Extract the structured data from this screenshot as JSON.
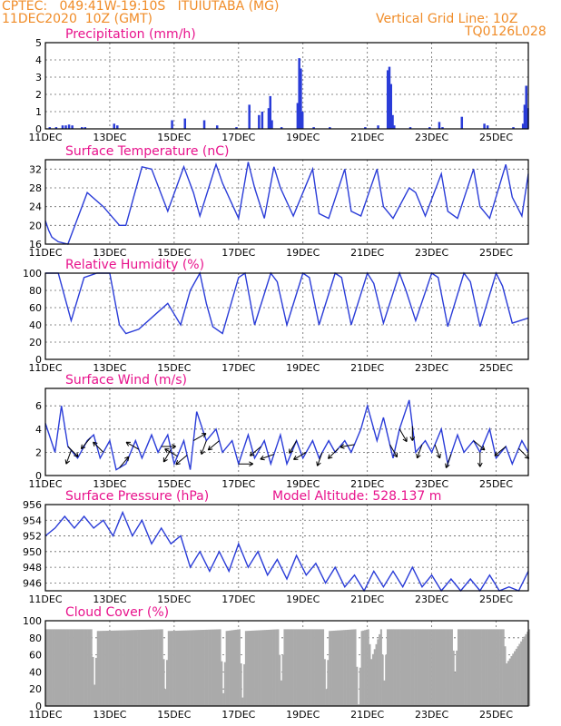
{
  "header": {
    "line1_left": "CPTEC:   049:41W-19:10S   ITUIUTABA (MG)",
    "line2_left": "11DEC2020  10Z (GMT)",
    "line2_right": "Vertical Grid Line: 10Z",
    "line3_right": "TQ0126L028"
  },
  "x_ticks": [
    "11DEC",
    "13DEC",
    "15DEC",
    "17DEC",
    "19DEC",
    "21DEC",
    "23DEC",
    "25DEC"
  ],
  "colors": {
    "line": "#2a3cd8",
    "bars": "#2a3cd8",
    "cloud": "#aaaaaa",
    "title": "#e8128c",
    "header": "#f08c28"
  },
  "chart_data": [
    {
      "id": "precip",
      "type": "bar",
      "title": "Precipitation (mm/h)",
      "ylim": [
        0,
        5
      ],
      "yticks": [
        0,
        1,
        2,
        3,
        4,
        5
      ],
      "grid": true,
      "series": [
        {
          "x": [
            0.1,
            0.3,
            0.5,
            0.6,
            0.7,
            0.8,
            1.1,
            1.2,
            2.1,
            2.2,
            3.9,
            4.3,
            4.9,
            5.3,
            5.9,
            6.3,
            6.6,
            6.7,
            6.9,
            6.95,
            7.0,
            7.3,
            7.8,
            7.85,
            7.9,
            7.95,
            8.3,
            8.8,
            9.9,
            10.3,
            10.6,
            10.65,
            10.7,
            10.75,
            10.8,
            11.3,
            11.9,
            12.2,
            12.3,
            12.9,
            13.6,
            13.7,
            14.5,
            14.8,
            14.85,
            14.9,
            14.95
          ],
          "values": [
            0.1,
            0.1,
            0.2,
            0.2,
            0.25,
            0.2,
            0.1,
            0.1,
            0.3,
            0.2,
            0.5,
            0.6,
            0.5,
            0.2,
            0.1,
            1.4,
            0.8,
            1.0,
            1.2,
            1.9,
            0.5,
            0.1,
            1.5,
            4.1,
            3.5,
            1.0,
            0.1,
            0.1,
            0.1,
            0.2,
            3.4,
            3.6,
            2.6,
            0.8,
            0.2,
            0.1,
            0.1,
            0.4,
            0.1,
            0.7,
            0.3,
            0.2,
            0.1,
            0.3,
            1.4,
            2.5,
            1.2
          ]
        }
      ]
    },
    {
      "id": "temp",
      "type": "line",
      "title": "Surface Temperature (nC)",
      "ylim": [
        16,
        34
      ],
      "yticks": [
        16,
        20,
        24,
        28,
        32
      ],
      "grid": true,
      "series": [
        {
          "x": [
            0,
            0.1,
            0.2,
            0.4,
            0.7,
            1.3,
            1.8,
            2.3,
            2.5,
            3.0,
            3.3,
            3.8,
            4.3,
            4.6,
            4.8,
            5.3,
            5.5,
            6.0,
            6.3,
            6.5,
            6.8,
            7.1,
            7.3,
            7.7,
            8.3,
            8.5,
            8.8,
            9.3,
            9.5,
            9.8,
            10.3,
            10.5,
            10.8,
            11.3,
            11.5,
            11.8,
            12.3,
            12.5,
            12.8,
            13.3,
            13.5,
            13.8,
            14.3,
            14.5,
            14.8,
            15.0
          ],
          "values": [
            21,
            19,
            17.5,
            16.5,
            16,
            27,
            24,
            20,
            20,
            32.5,
            32,
            23,
            32.5,
            27,
            22,
            33,
            29,
            21.5,
            33.5,
            28,
            21.5,
            32.5,
            28,
            22,
            32,
            22.5,
            21.5,
            32,
            23,
            22,
            32,
            24,
            21.5,
            28,
            27,
            22,
            31,
            23,
            21.5,
            32,
            24,
            21.5,
            33,
            26,
            22,
            31
          ]
        }
      ]
    },
    {
      "id": "rh",
      "type": "line",
      "title": "Relative Humidity (%)",
      "ylim": [
        0,
        100
      ],
      "yticks": [
        0,
        20,
        40,
        60,
        80,
        100
      ],
      "grid": true,
      "series": [
        {
          "x": [
            0,
            0.2,
            0.4,
            0.8,
            1.2,
            1.6,
            2.0,
            2.2,
            2.3,
            2.5,
            2.9,
            3.5,
            3.8,
            4.2,
            4.5,
            4.8,
            5.0,
            5.2,
            5.5,
            6.0,
            6.2,
            6.5,
            7.0,
            7.2,
            7.5,
            8.0,
            8.2,
            8.5,
            9.0,
            9.2,
            9.5,
            10.0,
            10.2,
            10.5,
            11.0,
            11.2,
            11.5,
            12.0,
            12.2,
            12.5,
            13.0,
            13.2,
            13.5,
            14.0,
            14.2,
            14.5,
            15.0
          ],
          "values": [
            100,
            100,
            100,
            45,
            95,
            100,
            100,
            60,
            40,
            30,
            35,
            55,
            65,
            40,
            80,
            100,
            65,
            38,
            30,
            95,
            100,
            40,
            100,
            90,
            40,
            100,
            95,
            40,
            100,
            95,
            40,
            100,
            88,
            42,
            100,
            80,
            45,
            100,
            95,
            38,
            100,
            90,
            38,
            100,
            85,
            42,
            48
          ]
        }
      ]
    },
    {
      "id": "wind",
      "type": "line",
      "title": "Surface Wind (m/s)",
      "ylim": [
        0,
        7.5
      ],
      "yticks": [
        0,
        2,
        4,
        6
      ],
      "grid": true,
      "series": [
        {
          "x": [
            0,
            0.3,
            0.5,
            0.7,
            1.0,
            1.3,
            1.5,
            1.7,
            2.0,
            2.2,
            2.5,
            2.8,
            3.0,
            3.3,
            3.5,
            3.8,
            4.0,
            4.3,
            4.5,
            4.7,
            5.0,
            5.3,
            5.5,
            5.8,
            6.0,
            6.3,
            6.5,
            6.8,
            7.0,
            7.3,
            7.5,
            7.8,
            8.0,
            8.3,
            8.5,
            8.8,
            9.0,
            9.3,
            9.5,
            9.8,
            10.0,
            10.3,
            10.5,
            10.8,
            11.0,
            11.3,
            11.5,
            11.8,
            12.0,
            12.3,
            12.5,
            12.8,
            13.0,
            13.3,
            13.5,
            13.8,
            14.0,
            14.3,
            14.5,
            14.8,
            15.0
          ],
          "values": [
            4.5,
            2,
            6,
            2.5,
            1.5,
            3,
            3.5,
            1.5,
            3,
            0.5,
            1,
            3,
            1.5,
            3.5,
            2,
            3.5,
            1,
            3,
            0.5,
            5.5,
            3,
            4,
            2,
            3,
            1,
            3.5,
            1.5,
            3,
            1,
            3.5,
            1,
            3,
            1.5,
            3,
            1.5,
            3,
            2,
            3,
            2,
            4,
            6,
            3,
            5,
            1.5,
            4,
            6.5,
            2,
            3,
            2,
            4,
            1,
            3.5,
            2,
            3,
            2,
            4,
            1.5,
            2.5,
            1,
            3,
            2
          ]
        }
      ],
      "arrows": [
        {
          "x": 0.7,
          "dir": 135
        },
        {
          "x": 0.8,
          "dir": 200
        },
        {
          "x": 1.4,
          "dir": 220
        },
        {
          "x": 1.8,
          "dir": 315
        },
        {
          "x": 2.3,
          "dir": 40
        },
        {
          "x": 2.9,
          "dir": 300
        },
        {
          "x": 3.6,
          "dir": 90
        },
        {
          "x": 3.9,
          "dir": 210
        },
        {
          "x": 4.1,
          "dir": 300
        },
        {
          "x": 4.4,
          "dir": 230
        },
        {
          "x": 4.6,
          "dir": 60
        },
        {
          "x": 5.0,
          "dir": 200
        },
        {
          "x": 5.4,
          "dir": 230
        },
        {
          "x": 6.0,
          "dir": 90
        },
        {
          "x": 6.7,
          "dir": 230
        },
        {
          "x": 7.1,
          "dir": 250
        },
        {
          "x": 7.8,
          "dir": 210
        },
        {
          "x": 8.1,
          "dir": 240
        },
        {
          "x": 8.6,
          "dir": 200
        },
        {
          "x": 9.1,
          "dir": 225
        },
        {
          "x": 9.6,
          "dir": 260
        },
        {
          "x": 10.7,
          "dir": 150
        },
        {
          "x": 11.0,
          "dir": 150
        },
        {
          "x": 11.4,
          "dir": 180
        },
        {
          "x": 11.7,
          "dir": 200
        },
        {
          "x": 12.1,
          "dir": 160
        },
        {
          "x": 12.6,
          "dir": 200
        },
        {
          "x": 13.3,
          "dir": 130
        },
        {
          "x": 13.5,
          "dir": 180
        },
        {
          "x": 14.3,
          "dir": 230
        },
        {
          "x": 14.7,
          "dir": 135
        }
      ]
    },
    {
      "id": "pres",
      "type": "line",
      "title": "Surface Pressure (hPa)",
      "subtitle": "Model Altitude: 528.137 m",
      "ylim": [
        945,
        956
      ],
      "yticks": [
        946,
        948,
        950,
        952,
        954,
        956
      ],
      "grid": true,
      "series": [
        {
          "x": [
            0,
            0.3,
            0.6,
            0.9,
            1.2,
            1.5,
            1.8,
            2.1,
            2.4,
            2.7,
            3.0,
            3.3,
            3.6,
            3.9,
            4.2,
            4.5,
            4.8,
            5.1,
            5.4,
            5.7,
            6.0,
            6.3,
            6.6,
            6.9,
            7.2,
            7.5,
            7.8,
            8.1,
            8.4,
            8.7,
            9.0,
            9.3,
            9.6,
            9.9,
            10.2,
            10.5,
            10.8,
            11.1,
            11.4,
            11.7,
            12.0,
            12.3,
            12.6,
            12.9,
            13.2,
            13.5,
            13.8,
            14.1,
            14.4,
            14.7,
            15.0
          ],
          "values": [
            952,
            953,
            954.5,
            953,
            954.5,
            953,
            954,
            952,
            955,
            952,
            954,
            951,
            953,
            951,
            952,
            948,
            950,
            947.5,
            950,
            947.5,
            951,
            948,
            950,
            947,
            949,
            946.5,
            949.5,
            947,
            948.5,
            946,
            948,
            945.5,
            947,
            945,
            947.5,
            945.5,
            947.5,
            945.5,
            948,
            945.5,
            947,
            945,
            946.5,
            945,
            946.5,
            945,
            947,
            945,
            945.5,
            945,
            947.5
          ]
        }
      ]
    },
    {
      "id": "cloud",
      "type": "area",
      "title": "Cloud Cover (%)",
      "ylim": [
        0,
        100
      ],
      "yticks": [
        0,
        20,
        40,
        60,
        80,
        100
      ],
      "grid": true,
      "series": [
        {
          "x": [
            0,
            1.4,
            1.5,
            1.6,
            3.6,
            3.7,
            3.8,
            5.4,
            5.5,
            5.6,
            6.0,
            6.1,
            6.2,
            7.2,
            7.3,
            7.4,
            8.6,
            8.7,
            8.8,
            9.6,
            9.7,
            9.8,
            10.0,
            10.1,
            10.4,
            10.5,
            10.6,
            12.6,
            12.7,
            12.8,
            14.2,
            14.3,
            15.0
          ],
          "values": [
            90,
            90,
            25,
            88,
            90,
            20,
            88,
            90,
            15,
            88,
            90,
            10,
            88,
            90,
            30,
            90,
            90,
            20,
            88,
            90,
            2,
            88,
            90,
            55,
            90,
            30,
            90,
            90,
            40,
            90,
            90,
            50,
            90
          ]
        }
      ]
    }
  ]
}
